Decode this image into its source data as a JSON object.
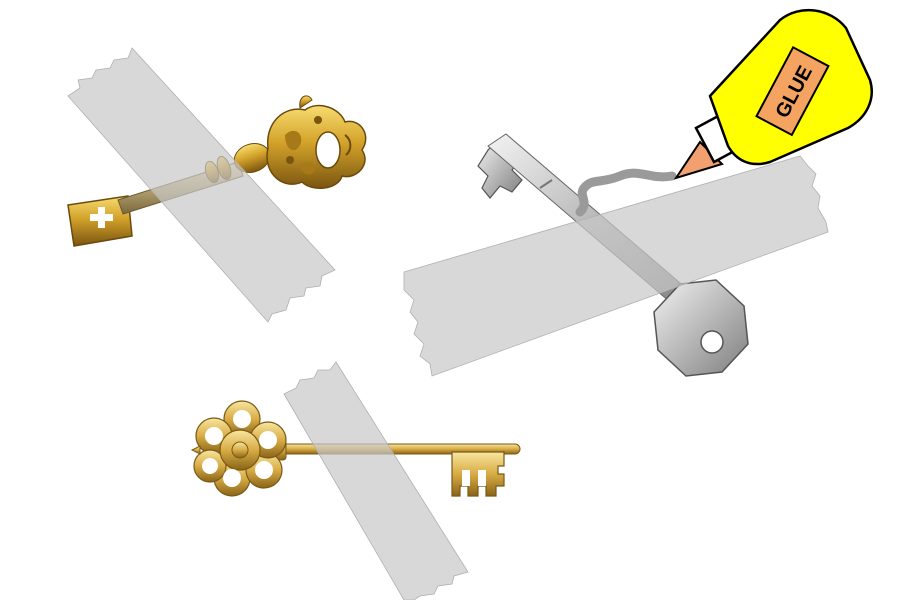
{
  "scene": {
    "background_color": "#ffffff",
    "objects": [
      {
        "kind": "tape-strip",
        "color": "#d9d9d9"
      },
      {
        "kind": "ornate-brass-key",
        "color": "#c89a1f"
      },
      {
        "kind": "silver-key",
        "color": "#bdbdbd"
      },
      {
        "kind": "golden-key",
        "color": "#d4a83a"
      },
      {
        "kind": "glue-bottle",
        "color": "#ffff00"
      }
    ]
  },
  "glue_bottle": {
    "label": "GLUE",
    "body_color": "#ffff00",
    "label_color": "#f4a460",
    "tip_color": "#f2a070",
    "outline_color": "#000000"
  }
}
